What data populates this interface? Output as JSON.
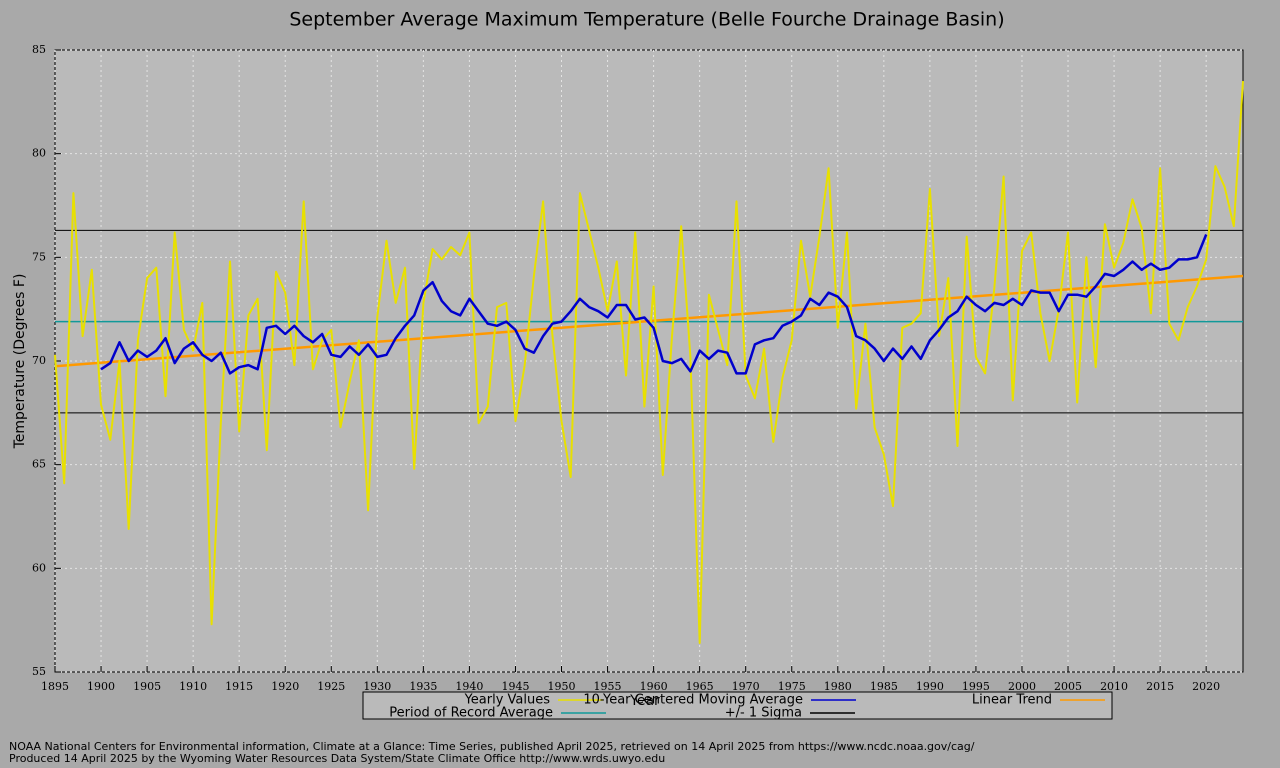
{
  "chart_data": {
    "type": "line",
    "title": "September Average Maximum Temperature (Belle Fourche Drainage Basin)",
    "xlabel": "Year",
    "ylabel": "Temperature (Degrees F)",
    "x": [
      1895,
      1896,
      1897,
      1898,
      1899,
      1900,
      1901,
      1902,
      1903,
      1904,
      1905,
      1906,
      1907,
      1908,
      1909,
      1910,
      1911,
      1912,
      1913,
      1914,
      1915,
      1916,
      1917,
      1918,
      1919,
      1920,
      1921,
      1922,
      1923,
      1924,
      1925,
      1926,
      1927,
      1928,
      1929,
      1930,
      1931,
      1932,
      1933,
      1934,
      1935,
      1936,
      1937,
      1938,
      1939,
      1940,
      1941,
      1942,
      1943,
      1944,
      1945,
      1946,
      1947,
      1948,
      1949,
      1950,
      1951,
      1952,
      1953,
      1954,
      1955,
      1956,
      1957,
      1958,
      1959,
      1960,
      1961,
      1962,
      1963,
      1964,
      1965,
      1966,
      1967,
      1968,
      1969,
      1970,
      1971,
      1972,
      1973,
      1974,
      1975,
      1976,
      1977,
      1978,
      1979,
      1980,
      1981,
      1982,
      1983,
      1984,
      1985,
      1986,
      1987,
      1988,
      1989,
      1990,
      1991,
      1992,
      1993,
      1994,
      1995,
      1996,
      1997,
      1998,
      1999,
      2000,
      2001,
      2002,
      2003,
      2004,
      2005,
      2006,
      2007,
      2008,
      2009,
      2010,
      2011,
      2012,
      2013,
      2014,
      2015,
      2016,
      2017,
      2018,
      2019,
      2020,
      2021,
      2022,
      2023,
      2024
    ],
    "series": [
      {
        "name": "Yearly Values",
        "color": "#e8e000",
        "values": [
          70.3,
          64.1,
          78.1,
          71.2,
          74.4,
          67.9,
          66.2,
          70.0,
          61.9,
          71.0,
          74.0,
          74.5,
          68.3,
          76.2,
          71.5,
          70.5,
          72.8,
          57.3,
          67.0,
          74.8,
          66.6,
          72.2,
          73.0,
          65.7,
          74.3,
          73.3,
          69.8,
          77.7,
          69.6,
          71.0,
          71.5,
          66.8,
          69.0,
          71.0,
          62.8,
          72.1,
          75.8,
          72.8,
          74.5,
          64.8,
          72.8,
          75.4,
          74.9,
          75.5,
          75.1,
          76.2,
          67.0,
          67.8,
          72.6,
          72.8,
          67.1,
          69.8,
          74.1,
          77.7,
          71.3,
          67.1,
          64.4,
          78.1,
          76.3,
          74.5,
          72.4,
          74.8,
          69.3,
          76.2,
          67.8,
          73.6,
          64.5,
          71.2,
          76.5,
          70.2,
          56.4,
          73.2,
          71.5,
          69.8,
          77.7,
          69.3,
          68.2,
          70.6,
          66.1,
          69.2,
          71.0,
          75.8,
          73.1,
          76.0,
          79.3,
          71.6,
          76.2,
          67.7,
          71.8,
          66.8,
          65.5,
          63.0,
          71.6,
          71.8,
          72.3,
          78.3,
          71.2,
          74.0,
          65.9,
          76.0,
          70.2,
          69.4,
          73.5,
          78.9,
          68.1,
          75.3,
          76.2,
          72.3,
          70.0,
          72.5,
          76.2,
          68.0,
          75.0,
          69.7,
          76.6,
          74.5,
          75.7,
          77.8,
          76.4,
          72.3,
          79.3,
          71.8,
          71.0,
          72.6,
          73.6,
          74.9,
          79.4,
          78.4,
          76.5,
          83.5
        ]
      },
      {
        "name": "10-Year Centered Moving Average",
        "color": "#0000cc",
        "values": [
          null,
          null,
          null,
          null,
          null,
          69.6,
          69.9,
          70.9,
          70.0,
          70.5,
          70.2,
          70.5,
          71.1,
          69.9,
          70.6,
          70.9,
          70.3,
          70.0,
          70.4,
          69.4,
          69.7,
          69.8,
          69.6,
          71.6,
          71.7,
          71.3,
          71.7,
          71.2,
          70.9,
          71.3,
          70.3,
          70.2,
          70.7,
          70.3,
          70.8,
          70.2,
          70.3,
          71.1,
          71.7,
          72.2,
          73.4,
          73.8,
          72.9,
          72.4,
          72.2,
          73.0,
          72.4,
          71.8,
          71.7,
          71.9,
          71.5,
          70.6,
          70.4,
          71.2,
          71.8,
          71.9,
          72.4,
          73.0,
          72.6,
          72.4,
          72.1,
          72.7,
          72.7,
          72.0,
          72.1,
          71.6,
          70.0,
          69.9,
          70.1,
          69.5,
          70.5,
          70.1,
          70.5,
          70.4,
          69.4,
          69.4,
          70.8,
          71.0,
          71.1,
          71.7,
          71.9,
          72.2,
          73.0,
          72.7,
          73.3,
          73.1,
          72.6,
          71.2,
          71.0,
          70.6,
          70.0,
          70.6,
          70.1,
          70.7,
          70.1,
          71.0,
          71.5,
          72.1,
          72.4,
          73.1,
          72.7,
          72.4,
          72.8,
          72.7,
          73.0,
          72.7,
          73.4,
          73.3,
          73.3,
          72.4,
          73.2,
          73.2,
          73.1,
          73.6,
          74.2,
          74.1,
          74.4,
          74.8,
          74.4,
          74.7,
          74.4,
          74.5,
          74.9,
          74.9,
          75.0,
          76.1,
          null,
          null,
          null,
          null
        ]
      }
    ],
    "trend": {
      "name": "Linear Trend",
      "color": "#ff9900",
      "x": [
        1895,
        2024
      ],
      "values": [
        69.75,
        74.1
      ]
    },
    "average": {
      "name": "Period of Record Average",
      "color": "#119999",
      "value": 71.9
    },
    "sigma": {
      "name": "+/- 1 Sigma",
      "color": "#000000",
      "upper": 76.3,
      "lower": 67.5
    },
    "xlim": [
      1895,
      2024
    ],
    "xticks": [
      1895,
      1900,
      1905,
      1910,
      1915,
      1920,
      1925,
      1930,
      1935,
      1940,
      1945,
      1950,
      1955,
      1960,
      1965,
      1970,
      1975,
      1980,
      1985,
      1990,
      1995,
      2000,
      2005,
      2010,
      2015,
      2020
    ],
    "ylim": [
      55,
      85
    ],
    "yticks": [
      55,
      60,
      65,
      70,
      75,
      80,
      85
    ],
    "grid": true,
    "notes": [
      "NOAA National Centers for Environmental information, Climate at a Glance: Time Series, published April 2025, retrieved on 14 April 2025 from https://www.ncdc.noaa.gov/cag/",
      "Produced 14 April 2025 by the Wyoming Water Resources Data System/State Climate Office http://www.wrds.uwyo.edu"
    ]
  }
}
